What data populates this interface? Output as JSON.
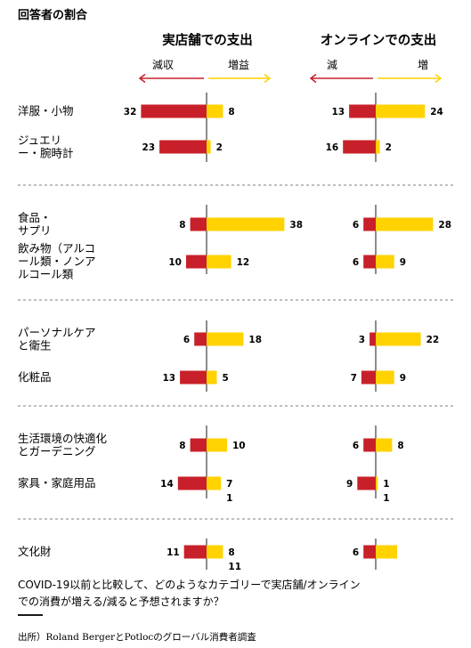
{
  "chart_data": {
    "type": "bar",
    "title": "回答者の割合",
    "panels": [
      {
        "name": "実店舗での支出",
        "decrease_label": "減収",
        "increase_label": "増益"
      },
      {
        "name": "オンラインでの支出",
        "decrease_label": "減",
        "increase_label": "増"
      }
    ],
    "groups": [
      {
        "categories": [
          {
            "label": [
              "洋服・小物"
            ],
            "store": {
              "decrease": 32,
              "increase": 8
            },
            "online": {
              "decrease": 13,
              "increase": 24
            }
          },
          {
            "label": [
              "ジュエリ",
              "ー・腕時計"
            ],
            "store": {
              "decrease": 23,
              "increase": 2
            },
            "online": {
              "decrease": 16,
              "increase": 2
            }
          }
        ]
      },
      {
        "categories": [
          {
            "label": [
              "食品・",
              "サプリ"
            ],
            "store": {
              "decrease": 8,
              "increase": 38
            },
            "online": {
              "decrease": 6,
              "increase": 28
            }
          },
          {
            "label": [
              "飲み物（アルコ",
              "ール類・ノンア",
              "ルコール類"
            ],
            "store": {
              "decrease": 10,
              "increase": 12
            },
            "online": {
              "decrease": 6,
              "increase": 9
            }
          }
        ]
      },
      {
        "categories": [
          {
            "label": [
              "パーソナルケア",
              "と衛生"
            ],
            "store": {
              "decrease": 6,
              "increase": 18
            },
            "online": {
              "decrease": 3,
              "increase": 22
            }
          },
          {
            "label": [
              "化粧品"
            ],
            "store": {
              "decrease": 13,
              "increase": 5
            },
            "online": {
              "decrease": 7,
              "increase": 9
            }
          }
        ]
      },
      {
        "categories": [
          {
            "label": [
              "生活環境の快適化",
              "とガーデニング"
            ],
            "store": {
              "decrease": 8,
              "increase": 10
            },
            "online": {
              "decrease": 6,
              "increase": 8
            }
          },
          {
            "label": [
              "家具・家庭用品"
            ],
            "store": {
              "decrease": 14,
              "increase": 7,
              "extra": "1"
            },
            "online": {
              "decrease": 9,
              "increase": 1,
              "extra": "1"
            }
          }
        ]
      },
      {
        "categories": [
          {
            "label": [
              "文化財"
            ],
            "store": {
              "decrease": 11,
              "increase": 8,
              "extra": "11"
            },
            "online": {
              "decrease": 6,
              "increase": null,
              "extra": ""
            }
          }
        ]
      }
    ],
    "colors": {
      "decrease": "#c8202a",
      "increase": "#ffd200",
      "divider": "#999999"
    },
    "question": [
      "COVID-19以前と比較して、どのようなカテゴリーで実店舗/オンライン",
      "での消費が増える/減ると予想されますか？"
    ],
    "source": "出所）Roland BergerとPotlocのグローバル消費者調査"
  }
}
